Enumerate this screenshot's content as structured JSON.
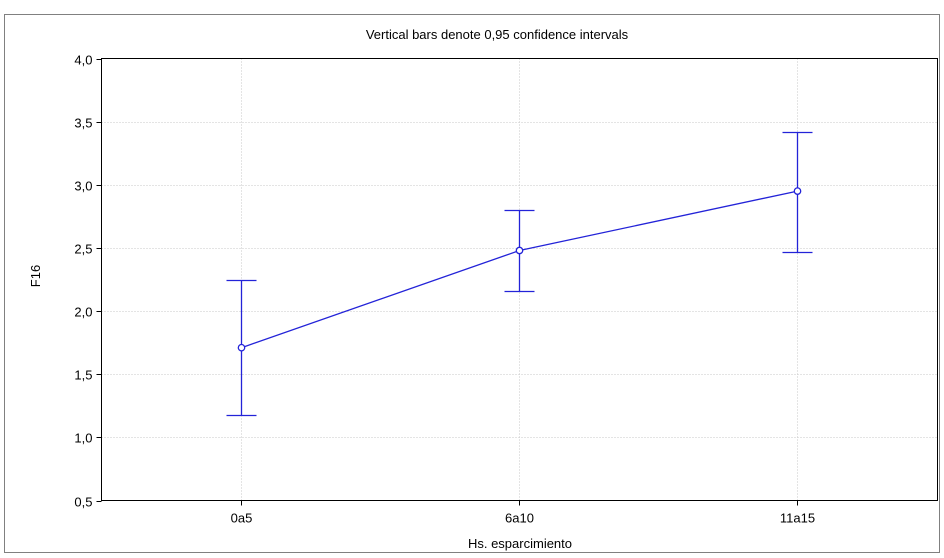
{
  "chart_data": {
    "type": "line",
    "title": "Vertical bars denote 0,95 confidence intervals",
    "xlabel": "Hs. esparcimiento",
    "ylabel": "F16",
    "categories": [
      "0a5",
      "6a10",
      "11a15"
    ],
    "series": [
      {
        "values": [
          1.71,
          2.48,
          2.95
        ],
        "ci_lower": [
          1.18,
          2.16,
          2.47
        ],
        "ci_upper": [
          2.25,
          2.8,
          3.42
        ]
      }
    ],
    "ylim": [
      0.5,
      4.0
    ],
    "yticks": [
      0.5,
      1.0,
      1.5,
      2.0,
      2.5,
      3.0,
      3.5,
      4.0
    ],
    "ytick_labels": [
      "0,5",
      "1,0",
      "1,5",
      "2,0",
      "2,5",
      "3,0",
      "3,5",
      "4,0"
    ],
    "grid": true,
    "colors": {
      "series": "#2323d8",
      "grid": "#c8c8c8",
      "frame": "#000000"
    }
  }
}
